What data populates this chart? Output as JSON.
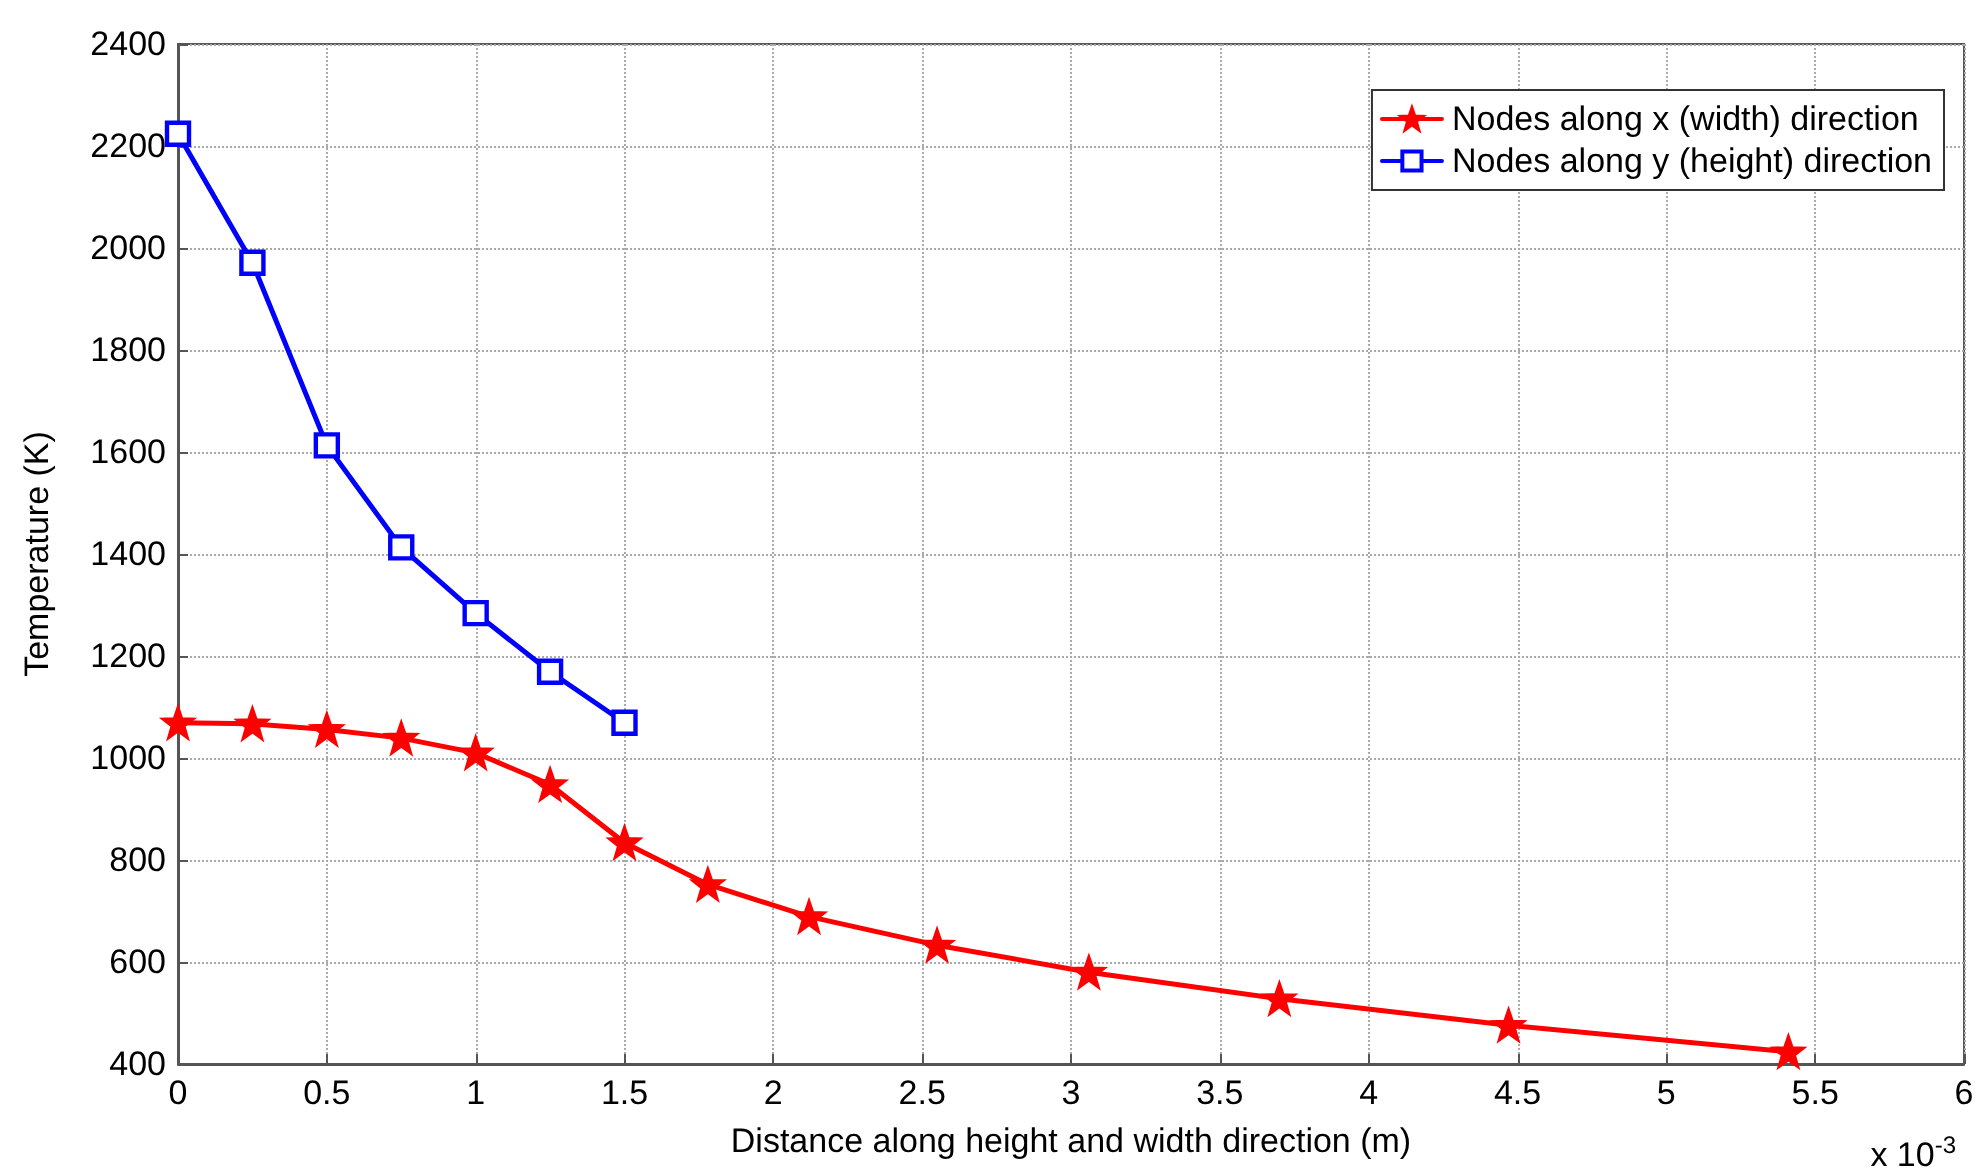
{
  "chart_data": {
    "type": "line",
    "xlabel": "Distance along height and width direction (m)",
    "ylabel": "Temperature (K)",
    "annotations": [
      "x 10$^{-3}$"
    ],
    "series": [
      {
        "name": "Nodes along x (width) direction",
        "color": "#ff0000",
        "marker": "star",
        "x": [
          0,
          0.25,
          0.5,
          0.75,
          1.0,
          1.25,
          1.5,
          1.78,
          2.12,
          2.55,
          3.06,
          3.7,
          4.47,
          5.41
        ],
        "values": [
          1069,
          1067,
          1056,
          1039,
          1010,
          948,
          834,
          752,
          689,
          633,
          580,
          528,
          476,
          424
        ]
      },
      {
        "name": "Nodes along y (height) direction",
        "color": "#0000ff",
        "marker": "square",
        "x": [
          0,
          0.25,
          0.5,
          0.75,
          1.0,
          1.25,
          1.5
        ],
        "values": [
          2224,
          1971,
          1613,
          1413,
          1284,
          1169,
          1069
        ]
      }
    ],
    "xlim": [
      0,
      6
    ],
    "xticks": [
      0,
      0.5,
      1,
      1.5,
      2,
      2.5,
      3,
      3.5,
      4,
      4.5,
      5,
      5.5,
      6
    ],
    "ylim": [
      400,
      2400
    ],
    "yticks": [
      400,
      600,
      800,
      1000,
      1200,
      1400,
      1600,
      1800,
      2000,
      2200,
      2400
    ],
    "grid": true,
    "legend": "top right",
    "line_style": "solid"
  }
}
